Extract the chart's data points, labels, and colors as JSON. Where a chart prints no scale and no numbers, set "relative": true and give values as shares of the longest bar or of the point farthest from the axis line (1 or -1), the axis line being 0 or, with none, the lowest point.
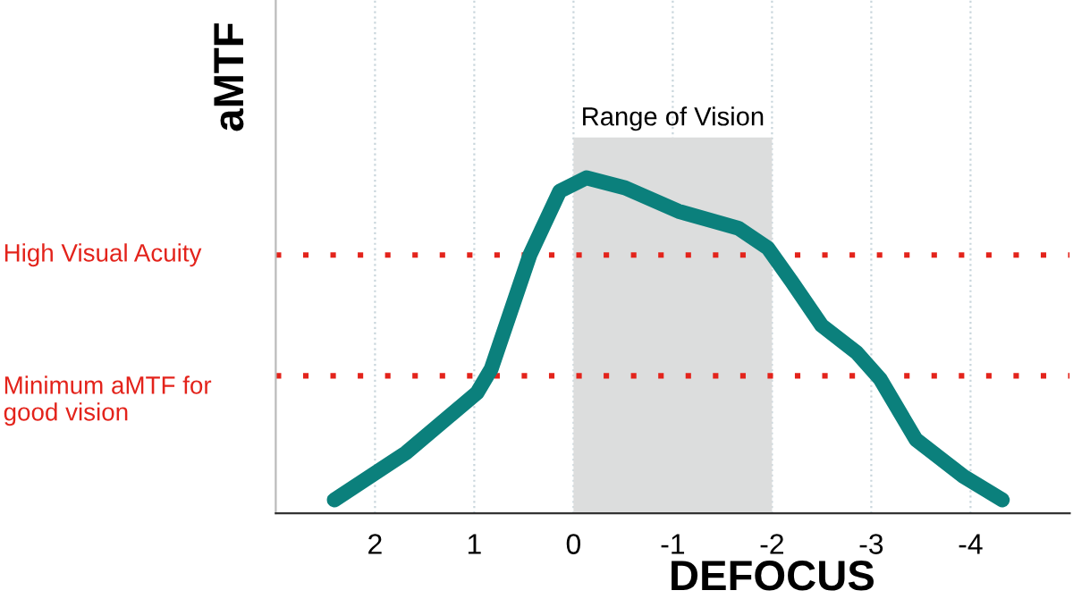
{
  "chart_data": {
    "type": "line",
    "xlabel": "DEFOCUS",
    "ylabel": "aMTF",
    "relative": true,
    "xlim": [
      3,
      -5
    ],
    "xticks": [
      2,
      1,
      0,
      -1,
      -2,
      -3,
      -4
    ],
    "grid": "x",
    "series": [
      {
        "color": "#0b807c",
        "x": [
          2.41,
          1.69,
          0.97,
          0.83,
          0.44,
          0.14,
          -0.13,
          -0.52,
          -1.06,
          -1.66,
          -1.96,
          -2.2,
          -2.5,
          -2.85,
          -3.09,
          -3.45,
          -3.93,
          -4.32
        ],
        "values": [
          0.04,
          0.18,
          0.36,
          0.43,
          0.77,
          0.96,
          1.0,
          0.97,
          0.9,
          0.85,
          0.79,
          0.69,
          0.56,
          0.48,
          0.4,
          0.22,
          0.11,
          0.04
        ]
      }
    ],
    "ref_lines": [
      {
        "axis": "y",
        "value": 0.77,
        "label": "High Visual Acuity",
        "color": "#e3231b",
        "line_style": "dotted"
      },
      {
        "axis": "y",
        "value": 0.41,
        "label": "Minimum aMTF for\ngood vision",
        "color": "#e3231b",
        "line_style": "dotted"
      }
    ],
    "bands": [
      {
        "axis": "x",
        "from": 0,
        "to": -2,
        "label": "Range of Vision",
        "color": "#dcdddd"
      }
    ]
  }
}
